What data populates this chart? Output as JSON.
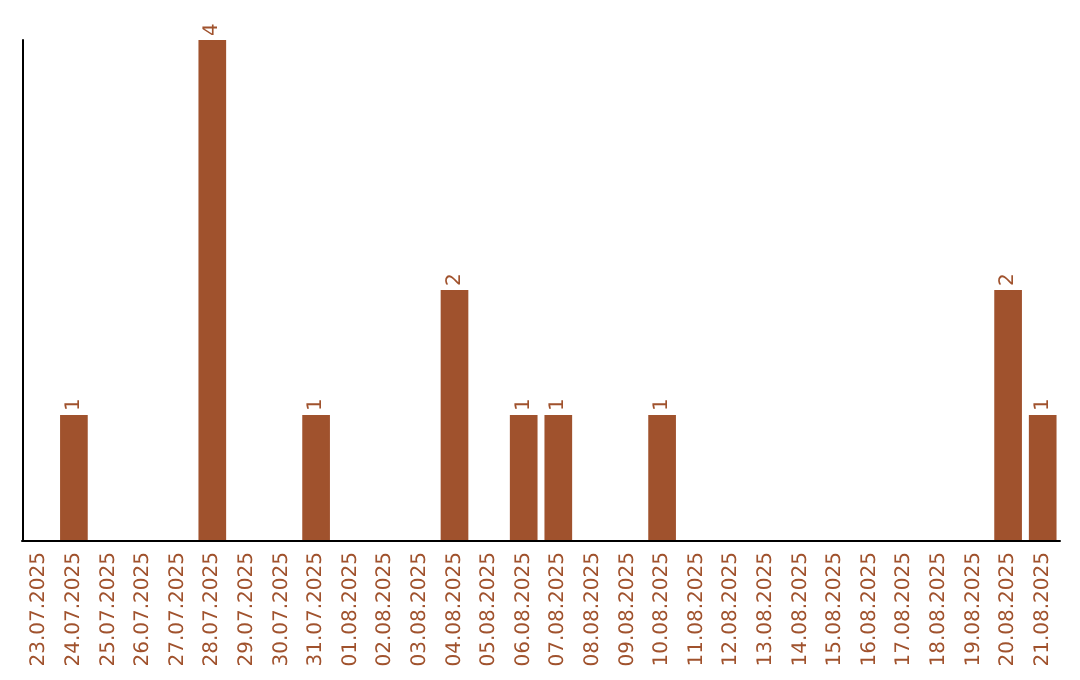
{
  "chart_data": {
    "type": "bar",
    "categories": [
      "23.07.2025",
      "24.07.2025",
      "25.07.2025",
      "26.07.2025",
      "27.07.2025",
      "28.07.2025",
      "29.07.2025",
      "30.07.2025",
      "31.07.2025",
      "01.08.2025",
      "02.08.2025",
      "03.08.2025",
      "04.08.2025",
      "05.08.2025",
      "06.08.2025",
      "07.08.2025",
      "08.08.2025",
      "09.08.2025",
      "10.08.2025",
      "11.08.2025",
      "12.08.2025",
      "13.08.2025",
      "14.08.2025",
      "15.08.2025",
      "16.08.2025",
      "17.08.2025",
      "18.08.2025",
      "19.08.2025",
      "20.08.2025",
      "21.08.2025"
    ],
    "values": [
      0,
      1,
      0,
      0,
      0,
      4,
      0,
      0,
      1,
      0,
      0,
      0,
      2,
      0,
      1,
      1,
      0,
      0,
      1,
      0,
      0,
      0,
      0,
      0,
      0,
      0,
      0,
      0,
      2,
      1
    ],
    "value_labels": [
      null,
      "1",
      null,
      null,
      null,
      "4",
      null,
      null,
      "1",
      null,
      null,
      null,
      "2",
      null,
      "1",
      "1",
      null,
      null,
      "1",
      null,
      null,
      null,
      null,
      null,
      null,
      null,
      null,
      null,
      "2",
      "1"
    ],
    "color": "#a0522d",
    "tick_labels": "x"
  }
}
